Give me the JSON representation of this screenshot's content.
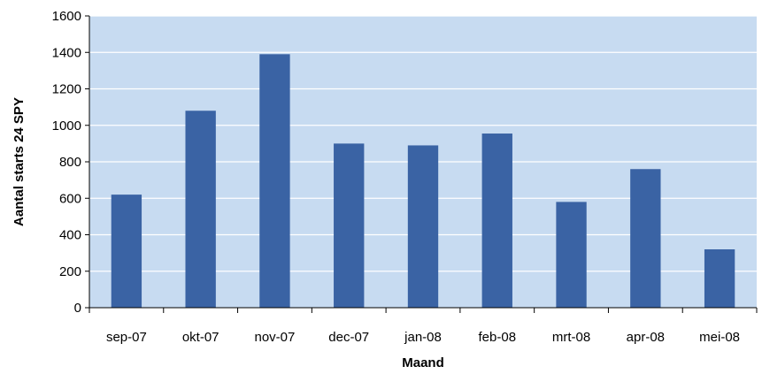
{
  "chart_data": {
    "type": "bar",
    "title": "",
    "xlabel": "Maand",
    "ylabel": "Aantal starts 24 SPY",
    "categories": [
      "sep-07",
      "okt-07",
      "nov-07",
      "dec-07",
      "jan-08",
      "feb-08",
      "mrt-08",
      "apr-08",
      "mei-08"
    ],
    "values": [
      620,
      1080,
      1390,
      900,
      890,
      955,
      580,
      760,
      320
    ],
    "ylim": [
      0,
      1600
    ],
    "yticks": [
      0,
      200,
      400,
      600,
      800,
      1000,
      1200,
      1400,
      1600
    ],
    "grid": true,
    "legend": "none",
    "colors": {
      "bar": "#3A63A4",
      "plot_background": "#C7DBF1",
      "gridline": "#FFFFFF",
      "axis": "#000000"
    }
  }
}
